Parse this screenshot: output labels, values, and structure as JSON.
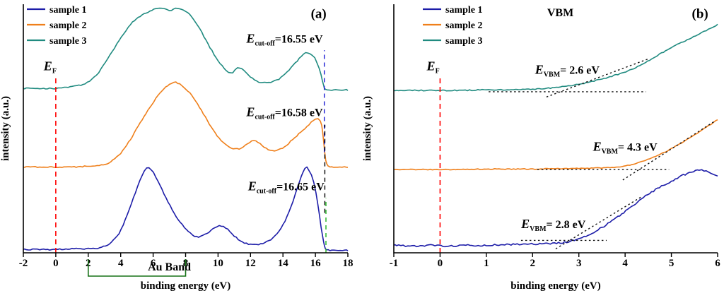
{
  "figure": {
    "background": "#ffffff"
  },
  "chart_data": [
    {
      "id": "panel-a",
      "type": "line",
      "panel_label": "(a)",
      "xlabel": "binding energy (eV)",
      "ylabel": "intensity (a.u.)",
      "xlim": [
        -2,
        18
      ],
      "xticks": [
        -2,
        0,
        2,
        4,
        6,
        8,
        10,
        12,
        14,
        16,
        18
      ],
      "legend": [
        "sample 1",
        "sample 2",
        "sample 3"
      ],
      "E_F_eV": 0,
      "measurements": {
        "sample 1": {
          "E_cutoff_eV": 16.65
        },
        "sample 2": {
          "E_cutoff_eV": 16.58
        },
        "sample 3": {
          "E_cutoff_eV": 16.55
        }
      },
      "series": [
        {
          "name": "sample 1",
          "color": "#1c1ca8",
          "offset": 0.01,
          "scale": 0.34,
          "noise": 1.6,
          "points": [
            [
              -2,
              0.01
            ],
            [
              -1,
              0.01
            ],
            [
              0,
              0.01
            ],
            [
              1,
              0.02
            ],
            [
              2,
              0.02
            ],
            [
              2.7,
              0.03
            ],
            [
              3.3,
              0.08
            ],
            [
              3.9,
              0.2
            ],
            [
              4.4,
              0.42
            ],
            [
              4.9,
              0.68
            ],
            [
              5.3,
              0.88
            ],
            [
              5.6,
              0.97
            ],
            [
              5.9,
              0.95
            ],
            [
              6.3,
              0.82
            ],
            [
              6.8,
              0.62
            ],
            [
              7.3,
              0.44
            ],
            [
              7.8,
              0.3
            ],
            [
              8.3,
              0.2
            ],
            [
              8.8,
              0.16
            ],
            [
              9.3,
              0.2
            ],
            [
              9.8,
              0.27
            ],
            [
              10.2,
              0.29
            ],
            [
              10.6,
              0.25
            ],
            [
              11,
              0.17
            ],
            [
              11.5,
              0.1
            ],
            [
              12,
              0.07
            ],
            [
              12.5,
              0.07
            ],
            [
              13,
              0.1
            ],
            [
              13.5,
              0.17
            ],
            [
              14,
              0.3
            ],
            [
              14.5,
              0.52
            ],
            [
              15,
              0.8
            ],
            [
              15.35,
              0.97
            ],
            [
              15.6,
              0.95
            ],
            [
              15.9,
              0.8
            ],
            [
              16.15,
              0.55
            ],
            [
              16.35,
              0.28
            ],
            [
              16.5,
              0.1
            ],
            [
              16.62,
              0.02
            ],
            [
              16.8,
              0
            ],
            [
              17.4,
              0
            ],
            [
              18,
              0
            ]
          ]
        },
        {
          "name": "sample 2",
          "color": "#ef7f1a",
          "offset": 0.345,
          "scale": 0.37,
          "noise": 1.6,
          "points": [
            [
              -2,
              0
            ],
            [
              -1,
              0
            ],
            [
              0,
              0
            ],
            [
              1,
              0
            ],
            [
              2,
              0.01
            ],
            [
              2.8,
              0.02
            ],
            [
              3.4,
              0.06
            ],
            [
              4,
              0.15
            ],
            [
              4.6,
              0.3
            ],
            [
              5.2,
              0.48
            ],
            [
              5.8,
              0.65
            ],
            [
              6.4,
              0.8
            ],
            [
              7,
              0.9
            ],
            [
              7.4,
              0.92
            ],
            [
              7.9,
              0.87
            ],
            [
              8.5,
              0.75
            ],
            [
              9.1,
              0.58
            ],
            [
              9.7,
              0.4
            ],
            [
              10.3,
              0.27
            ],
            [
              10.8,
              0.21
            ],
            [
              11.3,
              0.2
            ],
            [
              11.8,
              0.25
            ],
            [
              12.2,
              0.29
            ],
            [
              12.6,
              0.25
            ],
            [
              13.1,
              0.19
            ],
            [
              13.6,
              0.18
            ],
            [
              14.1,
              0.22
            ],
            [
              14.6,
              0.3
            ],
            [
              15.1,
              0.38
            ],
            [
              15.6,
              0.46
            ],
            [
              16,
              0.52
            ],
            [
              16.3,
              0.5
            ],
            [
              16.45,
              0.38
            ],
            [
              16.58,
              0.15
            ],
            [
              16.7,
              0.03
            ],
            [
              16.9,
              0
            ],
            [
              17.5,
              0
            ],
            [
              18,
              0
            ]
          ]
        },
        {
          "name": "sample 3",
          "color": "#208b80",
          "offset": 0.655,
          "scale": 0.33,
          "noise": 1.6,
          "points": [
            [
              -2,
              0.02
            ],
            [
              -1,
              0.02
            ],
            [
              0,
              0.02
            ],
            [
              1,
              0.04
            ],
            [
              1.8,
              0.08
            ],
            [
              2.5,
              0.18
            ],
            [
              3.2,
              0.38
            ],
            [
              3.9,
              0.6
            ],
            [
              4.6,
              0.8
            ],
            [
              5.2,
              0.9
            ],
            [
              5.8,
              0.96
            ],
            [
              6.4,
              1
            ],
            [
              7,
              0.97
            ],
            [
              7.5,
              1
            ],
            [
              8,
              0.96
            ],
            [
              8.5,
              0.86
            ],
            [
              9,
              0.7
            ],
            [
              9.5,
              0.52
            ],
            [
              10,
              0.36
            ],
            [
              10.5,
              0.24
            ],
            [
              10.9,
              0.21
            ],
            [
              11.2,
              0.27
            ],
            [
              11.6,
              0.24
            ],
            [
              12,
              0.16
            ],
            [
              12.5,
              0.1
            ],
            [
              13,
              0.09
            ],
            [
              13.5,
              0.11
            ],
            [
              14,
              0.17
            ],
            [
              14.5,
              0.27
            ],
            [
              15,
              0.38
            ],
            [
              15.4,
              0.45
            ],
            [
              15.8,
              0.43
            ],
            [
              16.1,
              0.33
            ],
            [
              16.35,
              0.18
            ],
            [
              16.5,
              0.06
            ],
            [
              16.62,
              0.01
            ],
            [
              17,
              0
            ],
            [
              17.5,
              0
            ],
            [
              18,
              0
            ]
          ]
        }
      ],
      "lines": [
        {
          "name": "ef-line",
          "x1": 0,
          "y1": 0,
          "x2": 0,
          "y2": 0.71,
          "color": "#ff0000",
          "dash": "7 5",
          "width": 1.6
        },
        {
          "name": "cutoff-line-sample3",
          "x1": 16.55,
          "y1": 0.405,
          "x2": 16.55,
          "y2": 0.815,
          "color": "#2929d6",
          "dash": "6 5",
          "width": 1.5
        },
        {
          "name": "cutoff-line-sample2",
          "x1": 16.58,
          "y1": 0.16,
          "x2": 16.58,
          "y2": 0.515,
          "color": "#111111",
          "dash": "6 5",
          "width": 1.5
        },
        {
          "name": "cutoff-line-sample1",
          "x1": 16.65,
          "y1": 0,
          "x2": 16.65,
          "y2": 0.22,
          "color": "#2db82d",
          "dash": "6 5",
          "width": 1.5
        }
      ],
      "annotations": [
        {
          "name": "panel-label",
          "text": "(a)",
          "x": 16.2,
          "yfrac": 0.945,
          "size": 19
        },
        {
          "name": "ef-label",
          "e": "E",
          "sub": "F",
          "rest": "",
          "x": -0.35,
          "yfrac": 0.735
        },
        {
          "name": "cutoff-label-sample3",
          "e": "E",
          "sub": "cut-off",
          "rest": "=16.55 eV",
          "x": 14.1,
          "yfrac": 0.845
        },
        {
          "name": "cutoff-label-sample2",
          "e": "E",
          "sub": "cut-off",
          "rest": "=16.58 eV",
          "x": 14.1,
          "yfrac": 0.55
        },
        {
          "name": "cutoff-label-sample1",
          "e": "E",
          "sub": "cut-off",
          "rest": "=16.65 eV",
          "x": 14.2,
          "yfrac": 0.252
        }
      ],
      "au_band": {
        "label": "Au Band",
        "x1": 2,
        "x2": 8,
        "label_x": 7.0,
        "color": "#167016"
      }
    },
    {
      "id": "panel-b",
      "type": "line",
      "panel_label": "(b)",
      "xlabel": "binding energy (eV)",
      "ylabel": "intensity (a.u.)",
      "xlim": [
        -1,
        6
      ],
      "xticks": [
        -1,
        0,
        1,
        2,
        3,
        4,
        5,
        6
      ],
      "legend": [
        "sample 1",
        "sample 2",
        "sample 3"
      ],
      "E_F_eV": 0,
      "measurements": {
        "sample 1": {
          "E_VBM_eV": 2.8
        },
        "sample 2": {
          "E_VBM_eV": 4.3
        },
        "sample 3": {
          "E_VBM_eV": 2.6
        }
      },
      "series": [
        {
          "name": "sample 1",
          "color": "#1c1ca8",
          "offset": 0.02,
          "scale": 0.34,
          "noise": 2.4,
          "points": [
            [
              -1,
              0.03
            ],
            [
              -0.6,
              0.02
            ],
            [
              -0.2,
              0.03
            ],
            [
              0.2,
              0.02
            ],
            [
              0.6,
              0.03
            ],
            [
              1,
              0.03
            ],
            [
              1.4,
              0.04
            ],
            [
              1.8,
              0.04
            ],
            [
              2.2,
              0.05
            ],
            [
              2.6,
              0.06
            ],
            [
              2.9,
              0.09
            ],
            [
              3.2,
              0.15
            ],
            [
              3.5,
              0.24
            ],
            [
              3.8,
              0.35
            ],
            [
              4.1,
              0.47
            ],
            [
              4.4,
              0.6
            ],
            [
              4.7,
              0.7
            ],
            [
              5,
              0.79
            ],
            [
              5.3,
              0.87
            ],
            [
              5.6,
              0.92
            ],
            [
              5.8,
              0.9
            ],
            [
              6,
              0.85
            ]
          ]
        },
        {
          "name": "sample 2",
          "color": "#ef7f1a",
          "offset": 0.335,
          "scale": 0.2,
          "noise": 1.2,
          "points": [
            [
              -1,
              0
            ],
            [
              0,
              0
            ],
            [
              0.5,
              0
            ],
            [
              1,
              0.01
            ],
            [
              1.5,
              0.01
            ],
            [
              2,
              0.01
            ],
            [
              2.5,
              0.02
            ],
            [
              3,
              0.02
            ],
            [
              3.4,
              0.03
            ],
            [
              3.8,
              0.05
            ],
            [
              4.1,
              0.09
            ],
            [
              4.4,
              0.17
            ],
            [
              4.7,
              0.28
            ],
            [
              5,
              0.42
            ],
            [
              5.3,
              0.58
            ],
            [
              5.6,
              0.76
            ],
            [
              5.8,
              0.88
            ],
            [
              6,
              1
            ]
          ]
        },
        {
          "name": "sample 3",
          "color": "#208b80",
          "offset": 0.648,
          "scale": 0.27,
          "noise": 1.4,
          "points": [
            [
              -1,
              0.02
            ],
            [
              -0.5,
              0.02
            ],
            [
              0,
              0.02
            ],
            [
              0.5,
              0.02
            ],
            [
              1,
              0.03
            ],
            [
              1.5,
              0.03
            ],
            [
              2,
              0.04
            ],
            [
              2.3,
              0.05
            ],
            [
              2.6,
              0.07
            ],
            [
              2.9,
              0.1
            ],
            [
              3.2,
              0.14
            ],
            [
              3.5,
              0.19
            ],
            [
              3.8,
              0.25
            ],
            [
              4.1,
              0.32
            ],
            [
              4.4,
              0.42
            ],
            [
              4.7,
              0.54
            ],
            [
              5,
              0.66
            ],
            [
              5.3,
              0.76
            ],
            [
              5.6,
              0.86
            ],
            [
              5.8,
              0.93
            ],
            [
              6,
              1
            ]
          ]
        }
      ],
      "lines": [
        {
          "name": "ef-line",
          "x1": 0,
          "y1": 0,
          "x2": 0,
          "y2": 0.71,
          "color": "#ff0000",
          "dash": "7 5",
          "width": 1.6
        },
        {
          "name": "baseline-sample3",
          "x1": 1.05,
          "y1": 0.648,
          "x2": 4.45,
          "y2": 0.648,
          "color": "#111111",
          "dash": "2.5 3.5",
          "width": 1.4
        },
        {
          "name": "tangent-sample3",
          "x1": 2.3,
          "y1": 0.627,
          "x2": 4.5,
          "y2": 0.78,
          "color": "#111111",
          "dash": "2.5 3.5",
          "width": 1.4
        },
        {
          "name": "baseline-sample2",
          "x1": 2.1,
          "y1": 0.335,
          "x2": 4.95,
          "y2": 0.335,
          "color": "#111111",
          "dash": "2.5 3.5",
          "width": 1.4
        },
        {
          "name": "tangent-sample2",
          "x1": 3.95,
          "y1": 0.293,
          "x2": 5.95,
          "y2": 0.531,
          "color": "#111111",
          "dash": "2.5 3.5",
          "width": 1.4
        },
        {
          "name": "baseline-sample1",
          "x1": 1.75,
          "y1": 0.05,
          "x2": 3.6,
          "y2": 0.05,
          "color": "#111111",
          "dash": "2.5 3.5",
          "width": 1.4
        },
        {
          "name": "tangent-sample1",
          "x1": 2.5,
          "y1": 0.016,
          "x2": 4.35,
          "y2": 0.225,
          "color": "#111111",
          "dash": "2.5 3.5",
          "width": 1.4
        }
      ],
      "annotations": [
        {
          "name": "panel-label",
          "text": "(b)",
          "x": 5.62,
          "yfrac": 0.945,
          "size": 19
        },
        {
          "name": "vbm-title",
          "text": "VBM",
          "x": 2.6,
          "yfrac": 0.952,
          "size": 16
        },
        {
          "name": "ef-label",
          "e": "E",
          "sub": "F",
          "rest": "",
          "x": -0.15,
          "yfrac": 0.735
        },
        {
          "name": "vbm-label-sample3",
          "e": "E",
          "sub": "VBM",
          "rest": "= 2.6 eV",
          "x": 2.75,
          "yfrac": 0.72
        },
        {
          "name": "vbm-label-sample2",
          "e": "E",
          "sub": "VBM",
          "rest": "= 4.3 eV",
          "x": 4.0,
          "yfrac": 0.41
        },
        {
          "name": "vbm-label-sample1",
          "e": "E",
          "sub": "VBM",
          "rest": "= 2.8 eV",
          "x": 2.45,
          "yfrac": 0.1
        }
      ]
    }
  ]
}
